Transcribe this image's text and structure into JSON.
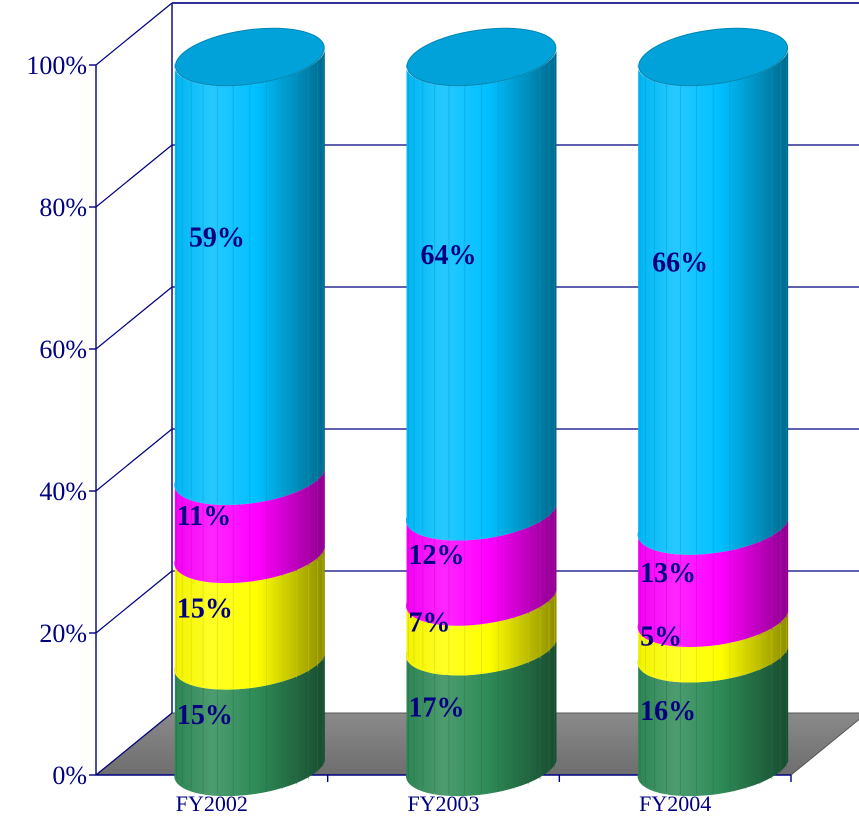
{
  "chart_data": {
    "type": "bar",
    "stacked": true,
    "percent_stacked": true,
    "style": "3d-cylinder",
    "title": "",
    "xlabel": "",
    "ylabel": "",
    "categories": [
      "FY2002",
      "FY2003",
      "FY2004"
    ],
    "ylim": [
      0,
      100
    ],
    "yticks": [
      0,
      20,
      40,
      60,
      80,
      100
    ],
    "ytick_labels": [
      "0%",
      "20%",
      "40%",
      "60%",
      "80%",
      "100%"
    ],
    "grid": true,
    "legend": "none",
    "series": [
      {
        "color": "#2e8b57",
        "values": [
          15,
          17,
          16
        ],
        "labels": [
          "15%",
          "17%",
          "16%"
        ]
      },
      {
        "color": "#ffff00",
        "values": [
          15,
          7,
          5
        ],
        "labels": [
          "15%",
          "7%",
          "5%"
        ]
      },
      {
        "color": "#ff00ff",
        "values": [
          11,
          12,
          13
        ],
        "labels": [
          "11%",
          "12%",
          "13%"
        ]
      },
      {
        "color": "#00bfff",
        "values": [
          59,
          64,
          66
        ],
        "labels": [
          "59%",
          "64%",
          "66%"
        ]
      }
    ]
  }
}
